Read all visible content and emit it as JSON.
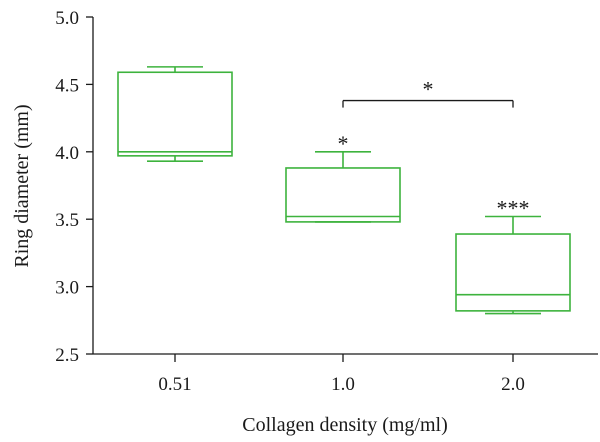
{
  "chart_data": {
    "type": "box",
    "xlabel": "Collagen density (mg/ml)",
    "ylabel": "Ring diameter (mm)",
    "ylim": [
      2.5,
      5.0
    ],
    "yticks": [
      "2.5",
      "3.0",
      "3.5",
      "4.0",
      "4.5",
      "5.0"
    ],
    "categories": [
      "0.51",
      "1.0",
      "2.0"
    ],
    "box_color": "#3db33d",
    "boxes": [
      {
        "category": "0.51",
        "min": 3.93,
        "q1": 3.97,
        "median": 4.0,
        "q3": 4.59,
        "max": 4.63,
        "marker": ""
      },
      {
        "category": "1.0",
        "min": 3.48,
        "q1": 3.48,
        "median": 3.52,
        "q3": 3.88,
        "max": 4.0,
        "marker": "*"
      },
      {
        "category": "2.0",
        "min": 2.8,
        "q1": 2.82,
        "median": 2.94,
        "q3": 3.39,
        "max": 3.52,
        "marker": "***"
      }
    ],
    "comparison": {
      "from": "1.0",
      "to": "2.0",
      "y": 4.38,
      "label": "*"
    }
  }
}
